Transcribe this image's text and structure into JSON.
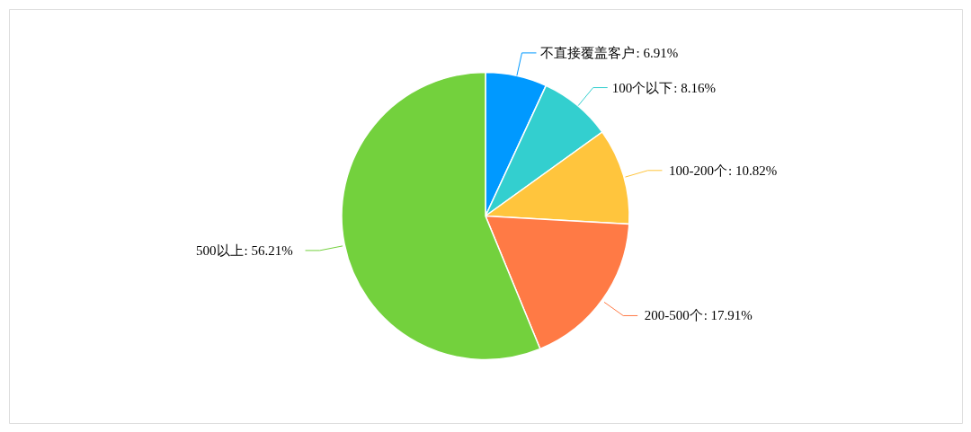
{
  "chart_data": {
    "type": "pie",
    "categories": [
      "不直接覆盖客户",
      "100个以下",
      "100-200个",
      "200-500个",
      "500以上"
    ],
    "values": [
      6.91,
      8.16,
      10.82,
      17.91,
      56.21
    ],
    "value_labels": [
      ": 6.91%",
      ": 8.16%",
      ": 10.82%",
      ": 17.91%",
      ": 56.21%"
    ],
    "colors": [
      "#0099ff",
      "#33cfcf",
      "#ffc53d",
      "#ff7a45",
      "#73d13d"
    ],
    "legend": false
  }
}
